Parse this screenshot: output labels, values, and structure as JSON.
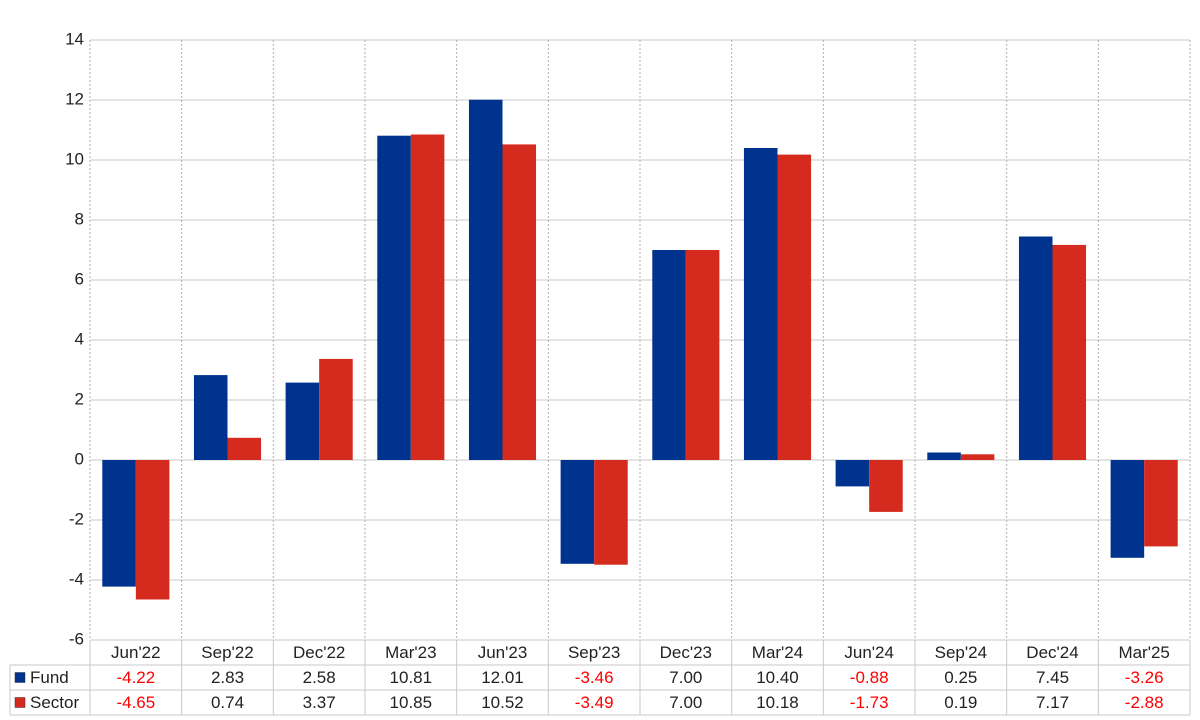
{
  "chart_data": {
    "type": "bar",
    "categories": [
      "Jun'22",
      "Sep'22",
      "Dec'22",
      "Mar'23",
      "Jun'23",
      "Sep'23",
      "Dec'23",
      "Mar'24",
      "Jun'24",
      "Sep'24",
      "Dec'24",
      "Mar'25"
    ],
    "series": [
      {
        "name": "Fund",
        "color": "#00338d",
        "values": [
          -4.22,
          2.83,
          2.58,
          10.81,
          12.01,
          -3.46,
          7.0,
          10.4,
          -0.88,
          0.25,
          7.45,
          -3.26
        ],
        "value_labels": [
          "-4.22",
          "2.83",
          "2.58",
          "10.81",
          "12.01",
          "-3.46",
          "7.00",
          "10.40",
          "-0.88",
          "0.25",
          "7.45",
          "-3.26"
        ]
      },
      {
        "name": "Sector",
        "color": "#d52b1e",
        "values": [
          -4.65,
          0.74,
          3.37,
          10.85,
          10.52,
          -3.49,
          7.0,
          10.18,
          -1.73,
          0.19,
          7.17,
          -2.88
        ],
        "value_labels": [
          "-4.65",
          "0.74",
          "3.37",
          "10.85",
          "10.52",
          "-3.49",
          "7.00",
          "10.18",
          "-1.73",
          "0.19",
          "7.17",
          "-2.88"
        ]
      }
    ],
    "ylim": [
      -6,
      14
    ],
    "yticks": [
      -6,
      -4,
      -2,
      0,
      2,
      4,
      6,
      8,
      10,
      12,
      14
    ],
    "grid": true,
    "negative_label_color": "#ff0000"
  }
}
